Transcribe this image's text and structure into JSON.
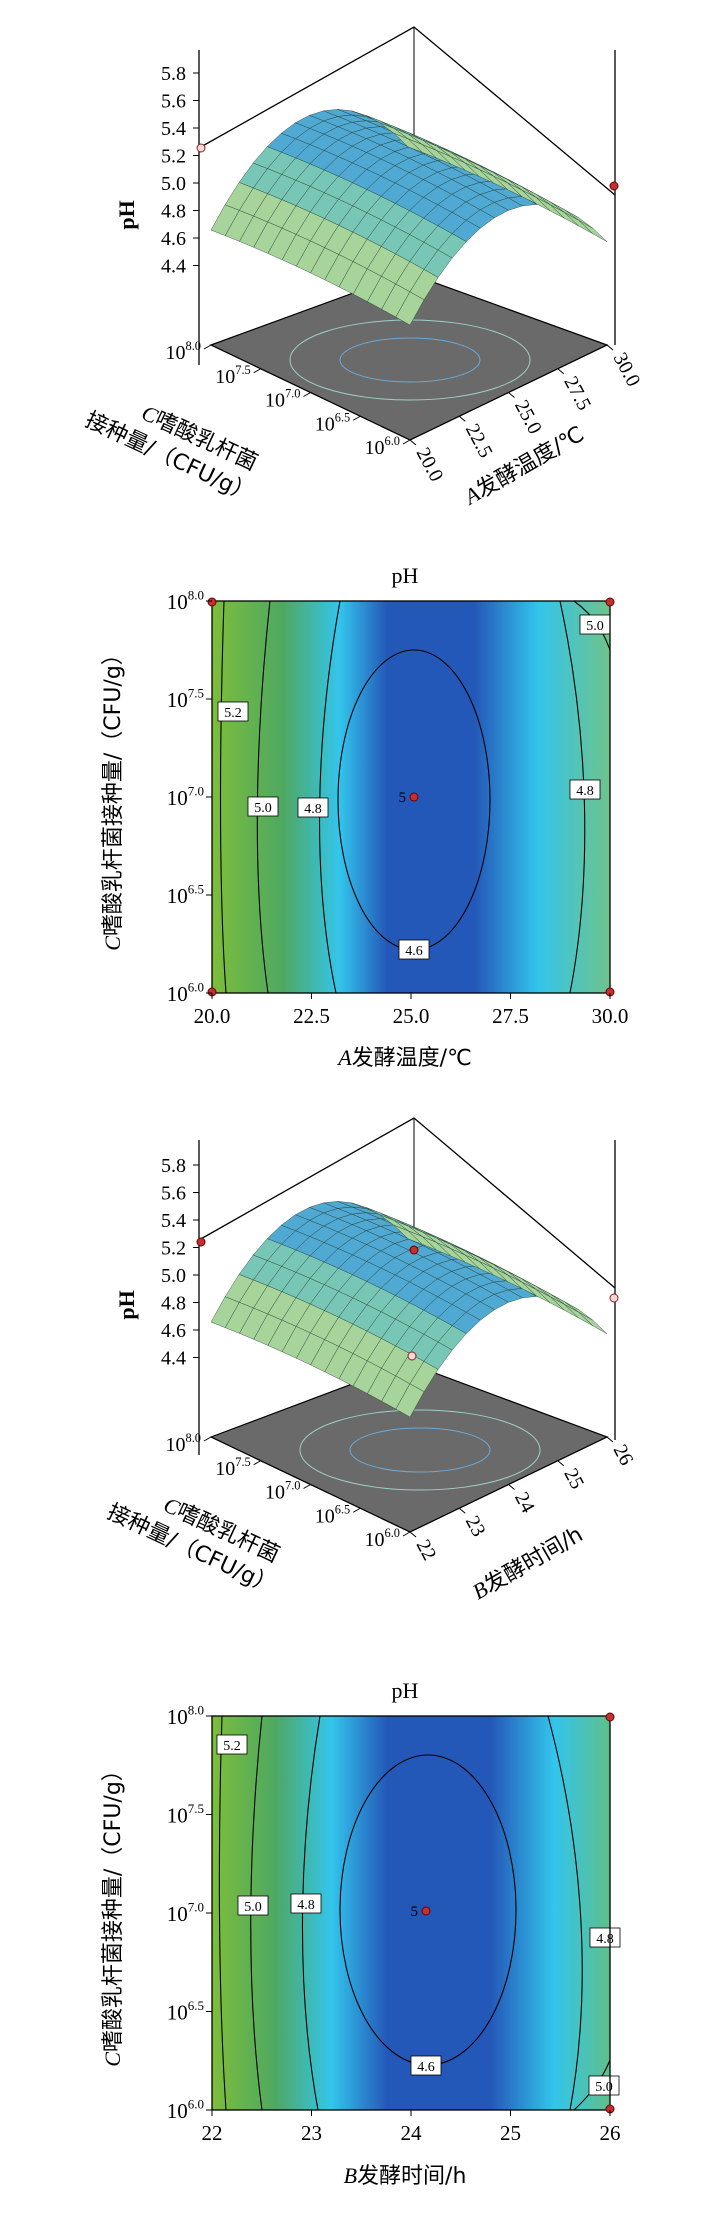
{
  "chart_data": [
    {
      "type": "surface",
      "z_label": "pH",
      "z_ticks": [
        "5.8",
        "5.6",
        "5.4",
        "5.2",
        "5.0",
        "4.8",
        "4.6",
        "4.4"
      ],
      "x_label_italic": "A",
      "x_label": "发酵温度/℃",
      "x_ticks": [
        "20.0",
        "22.5",
        "25.0",
        "27.5",
        "30.0"
      ],
      "y_label_italic": "C",
      "y_label_line1": "嗜酸乳杆菌",
      "y_label_line2": "接种量/（CFU/g）",
      "y_ticks": [
        {
          "base": "10",
          "exp": "6.0"
        },
        {
          "base": "10",
          "exp": "6.5"
        },
        {
          "base": "10",
          "exp": "7.0"
        },
        {
          "base": "10",
          "exp": "7.5"
        },
        {
          "base": "10",
          "exp": "8.0"
        }
      ]
    },
    {
      "type": "contour",
      "title": "pH",
      "x_label_italic": "A",
      "x_label": "发酵温度/℃",
      "x": [
        20.0,
        30.0
      ],
      "x_ticks": [
        "20.0",
        "22.5",
        "25.0",
        "27.5",
        "30.0"
      ],
      "y_label_italic": "C",
      "y_label": "嗜酸乳杆菌接种量/（CFU/g）",
      "y_ticks": [
        {
          "base": "10",
          "exp": "6.0"
        },
        {
          "base": "10",
          "exp": "6.5"
        },
        {
          "base": "10",
          "exp": "7.0"
        },
        {
          "base": "10",
          "exp": "7.5"
        },
        {
          "base": "10",
          "exp": "8.0"
        }
      ],
      "contour_labels": [
        "5.2",
        "5.0",
        "4.8",
        "4.8",
        "4.6",
        "5.0"
      ],
      "center_point": {
        "x": 25.0,
        "y": 7.0,
        "label": "5"
      },
      "colors": {
        "low": "#2458b8",
        "mid": "#33c5ec",
        "high": "#7dbd3a"
      }
    },
    {
      "type": "surface",
      "z_label": "pH",
      "z_ticks": [
        "5.8",
        "5.6",
        "5.4",
        "5.2",
        "5.0",
        "4.8",
        "4.6",
        "4.4"
      ],
      "x_label_italic": "B",
      "x_label": "发酵时间/h",
      "x_ticks": [
        "22",
        "23",
        "24",
        "25",
        "26"
      ],
      "y_label_italic": "C",
      "y_label_line1": "嗜酸乳杆菌",
      "y_label_line2": "接种量/（CFU/g）",
      "y_ticks": [
        {
          "base": "10",
          "exp": "6.0"
        },
        {
          "base": "10",
          "exp": "6.5"
        },
        {
          "base": "10",
          "exp": "7.0"
        },
        {
          "base": "10",
          "exp": "7.5"
        },
        {
          "base": "10",
          "exp": "8.0"
        }
      ]
    },
    {
      "type": "contour",
      "title": "pH",
      "x_label_italic": "B",
      "x_label": "发酵时间/h",
      "x": [
        22,
        26
      ],
      "x_ticks": [
        "22",
        "23",
        "24",
        "25",
        "26"
      ],
      "y_label_italic": "C",
      "y_label": "嗜酸乳杆菌接种量/（CFU/g）",
      "y_ticks": [
        {
          "base": "10",
          "exp": "6.0"
        },
        {
          "base": "10",
          "exp": "6.5"
        },
        {
          "base": "10",
          "exp": "7.0"
        },
        {
          "base": "10",
          "exp": "7.5"
        },
        {
          "base": "10",
          "exp": "8.0"
        }
      ],
      "contour_labels": [
        "5.2",
        "5.0",
        "4.8",
        "4.8",
        "4.6",
        "5.0"
      ],
      "center_point": {
        "x": 24,
        "y": 7.0,
        "label": "5"
      },
      "colors": {
        "low": "#2458b8",
        "mid": "#33c5ec",
        "high": "#7dbd3a"
      }
    }
  ]
}
